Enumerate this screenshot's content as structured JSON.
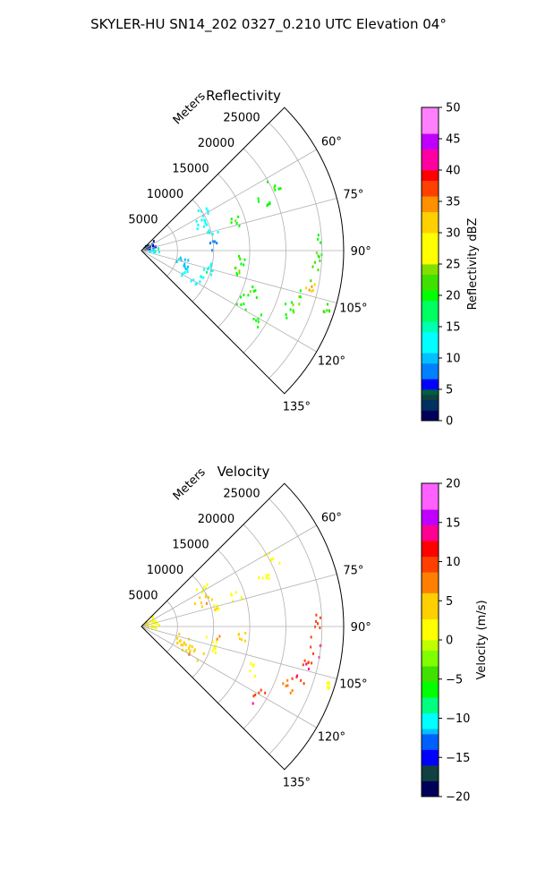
{
  "figure": {
    "suptitle": "SKYLER-HU  SN14_202  0327_0.210 UTC Elevation 04°"
  },
  "chart_data": [
    {
      "type": "polar-sector",
      "title": "Reflectivity",
      "radial_label": "Meters",
      "radial_ticks": [
        5000,
        10000,
        15000,
        20000,
        25000
      ],
      "radial_tick_labels": [
        "5000",
        "10000",
        "15000",
        "20000",
        "25000"
      ],
      "rlim": [
        0,
        28000
      ],
      "azimuth_range_deg": [
        45,
        135
      ],
      "azimuth_gridlines_deg": [
        60,
        75,
        90,
        105,
        120
      ],
      "azimuth_tick_labels": [
        "60°",
        "75°",
        "90°",
        "105°",
        "120°",
        "135°"
      ],
      "colorbar": {
        "label": "Reflectivity dBZ",
        "range": [
          0,
          50
        ],
        "ticks": [
          0,
          5,
          10,
          15,
          20,
          25,
          30,
          35,
          40,
          45,
          50
        ],
        "tick_labels": [
          "0",
          "5",
          "10",
          "15",
          "20",
          "25",
          "30",
          "35",
          "40",
          "45",
          "50"
        ]
      },
      "echo_regions": [
        {
          "az": [
            47,
            80
          ],
          "r": [
            200,
            2400
          ],
          "value": 2
        },
        {
          "az": [
            82,
            98
          ],
          "r": [
            800,
            2500
          ],
          "value": 13
        },
        {
          "az": [
            55,
            62
          ],
          "r": [
            9000,
            11000
          ],
          "value": 12
        },
        {
          "az": [
            62,
            72
          ],
          "r": [
            8000,
            10500
          ],
          "value": 11
        },
        {
          "az": [
            73,
            78
          ],
          "r": [
            9500,
            11500
          ],
          "value": 12
        },
        {
          "az": [
            80,
            92
          ],
          "r": [
            9500,
            10500
          ],
          "value": 8
        },
        {
          "az": [
            96,
            110
          ],
          "r": [
            9000,
            11000
          ],
          "value": 12
        },
        {
          "az": [
            110,
            122
          ],
          "r": [
            6500,
            9500
          ],
          "value": 13
        },
        {
          "az": [
            100,
            115
          ],
          "r": [
            5000,
            7000
          ],
          "value": 10
        },
        {
          "az": [
            60,
            66
          ],
          "r": [
            19500,
            21500
          ],
          "value": 20
        },
        {
          "az": [
            66,
            71
          ],
          "r": [
            17500,
            19500
          ],
          "value": 19
        },
        {
          "az": [
            70,
            76
          ],
          "r": [
            13000,
            14500
          ],
          "value": 19
        },
        {
          "az": [
            93,
            98
          ],
          "r": [
            13500,
            14500
          ],
          "value": 20
        },
        {
          "az": [
            100,
            106
          ],
          "r": [
            13000,
            14000
          ],
          "value": 20
        },
        {
          "az": [
            108,
            114
          ],
          "r": [
            16000,
            17500
          ],
          "value": 20
        },
        {
          "az": [
            113,
            120
          ],
          "r": [
            15000,
            17000
          ],
          "value": 19
        },
        {
          "az": [
            118,
            125
          ],
          "r": [
            18000,
            19500
          ],
          "value": 20
        },
        {
          "az": [
            84,
            92
          ],
          "r": [
            24000,
            25000
          ],
          "value": 20
        },
        {
          "az": [
            92,
            101
          ],
          "r": [
            23500,
            25000
          ],
          "value": 22
        },
        {
          "az": [
            101,
            104
          ],
          "r": [
            23000,
            24500
          ],
          "value": 30
        },
        {
          "az": [
            104,
            110
          ],
          "r": [
            22000,
            24000
          ],
          "value": 20
        },
        {
          "az": [
            110,
            115
          ],
          "r": [
            21000,
            23000
          ],
          "value": 19
        },
        {
          "az": [
            106,
            109
          ],
          "r": [
            26500,
            27500
          ],
          "value": 21
        }
      ]
    },
    {
      "type": "polar-sector",
      "title": "Velocity",
      "radial_label": "Meters",
      "radial_ticks": [
        5000,
        10000,
        15000,
        20000,
        25000
      ],
      "radial_tick_labels": [
        "5000",
        "10000",
        "15000",
        "20000",
        "25000"
      ],
      "rlim": [
        0,
        28000
      ],
      "azimuth_range_deg": [
        45,
        135
      ],
      "azimuth_gridlines_deg": [
        60,
        75,
        90,
        105,
        120
      ],
      "azimuth_tick_labels": [
        "60°",
        "75°",
        "90°",
        "105°",
        "120°",
        "135°"
      ],
      "colorbar": {
        "label": "Velocity (m/s)",
        "range": [
          -20,
          20
        ],
        "ticks": [
          -20,
          -15,
          -10,
          -5,
          0,
          5,
          10,
          15,
          20
        ],
        "tick_labels": [
          "−20",
          "−15",
          "−10",
          "−5",
          "0",
          "5",
          "10",
          "15",
          "20"
        ]
      },
      "echo_regions": [
        {
          "az": [
            47,
            80
          ],
          "r": [
            200,
            2400
          ],
          "value": 1
        },
        {
          "az": [
            82,
            98
          ],
          "r": [
            800,
            2500
          ],
          "value": 0
        },
        {
          "az": [
            55,
            62
          ],
          "r": [
            9000,
            11000
          ],
          "value": 2
        },
        {
          "az": [
            62,
            72
          ],
          "r": [
            8000,
            10500
          ],
          "value": 3
        },
        {
          "az": [
            73,
            78
          ],
          "r": [
            9500,
            11500
          ],
          "value": 1
        },
        {
          "az": [
            96,
            110
          ],
          "r": [
            9000,
            11000
          ],
          "value": 2
        },
        {
          "az": [
            110,
            122
          ],
          "r": [
            6500,
            9500
          ],
          "value": 5
        },
        {
          "az": [
            100,
            115
          ],
          "r": [
            5000,
            7000
          ],
          "value": 4
        },
        {
          "az": [
            60,
            66
          ],
          "r": [
            19500,
            21500
          ],
          "value": 2
        },
        {
          "az": [
            66,
            71
          ],
          "r": [
            17500,
            19500
          ],
          "value": 1
        },
        {
          "az": [
            70,
            76
          ],
          "r": [
            13000,
            14500
          ],
          "value": 0
        },
        {
          "az": [
            93,
            98
          ],
          "r": [
            13500,
            14500
          ],
          "value": 3
        },
        {
          "az": [
            108,
            114
          ],
          "r": [
            16000,
            17500
          ],
          "value": 1
        },
        {
          "az": [
            118,
            125
          ],
          "r": [
            18000,
            19500
          ],
          "value": 9
        },
        {
          "az": [
            84,
            92
          ],
          "r": [
            24000,
            25000
          ],
          "value": 9
        },
        {
          "az": [
            92,
            101
          ],
          "r": [
            23500,
            25000
          ],
          "value": 10
        },
        {
          "az": [
            101,
            104
          ],
          "r": [
            23000,
            24500
          ],
          "value": 9
        },
        {
          "az": [
            104,
            110
          ],
          "r": [
            22000,
            24000
          ],
          "value": 10
        },
        {
          "az": [
            110,
            115
          ],
          "r": [
            21000,
            23000
          ],
          "value": 8
        },
        {
          "az": [
            106,
            109
          ],
          "r": [
            26500,
            27500
          ],
          "value": 2
        }
      ]
    }
  ]
}
